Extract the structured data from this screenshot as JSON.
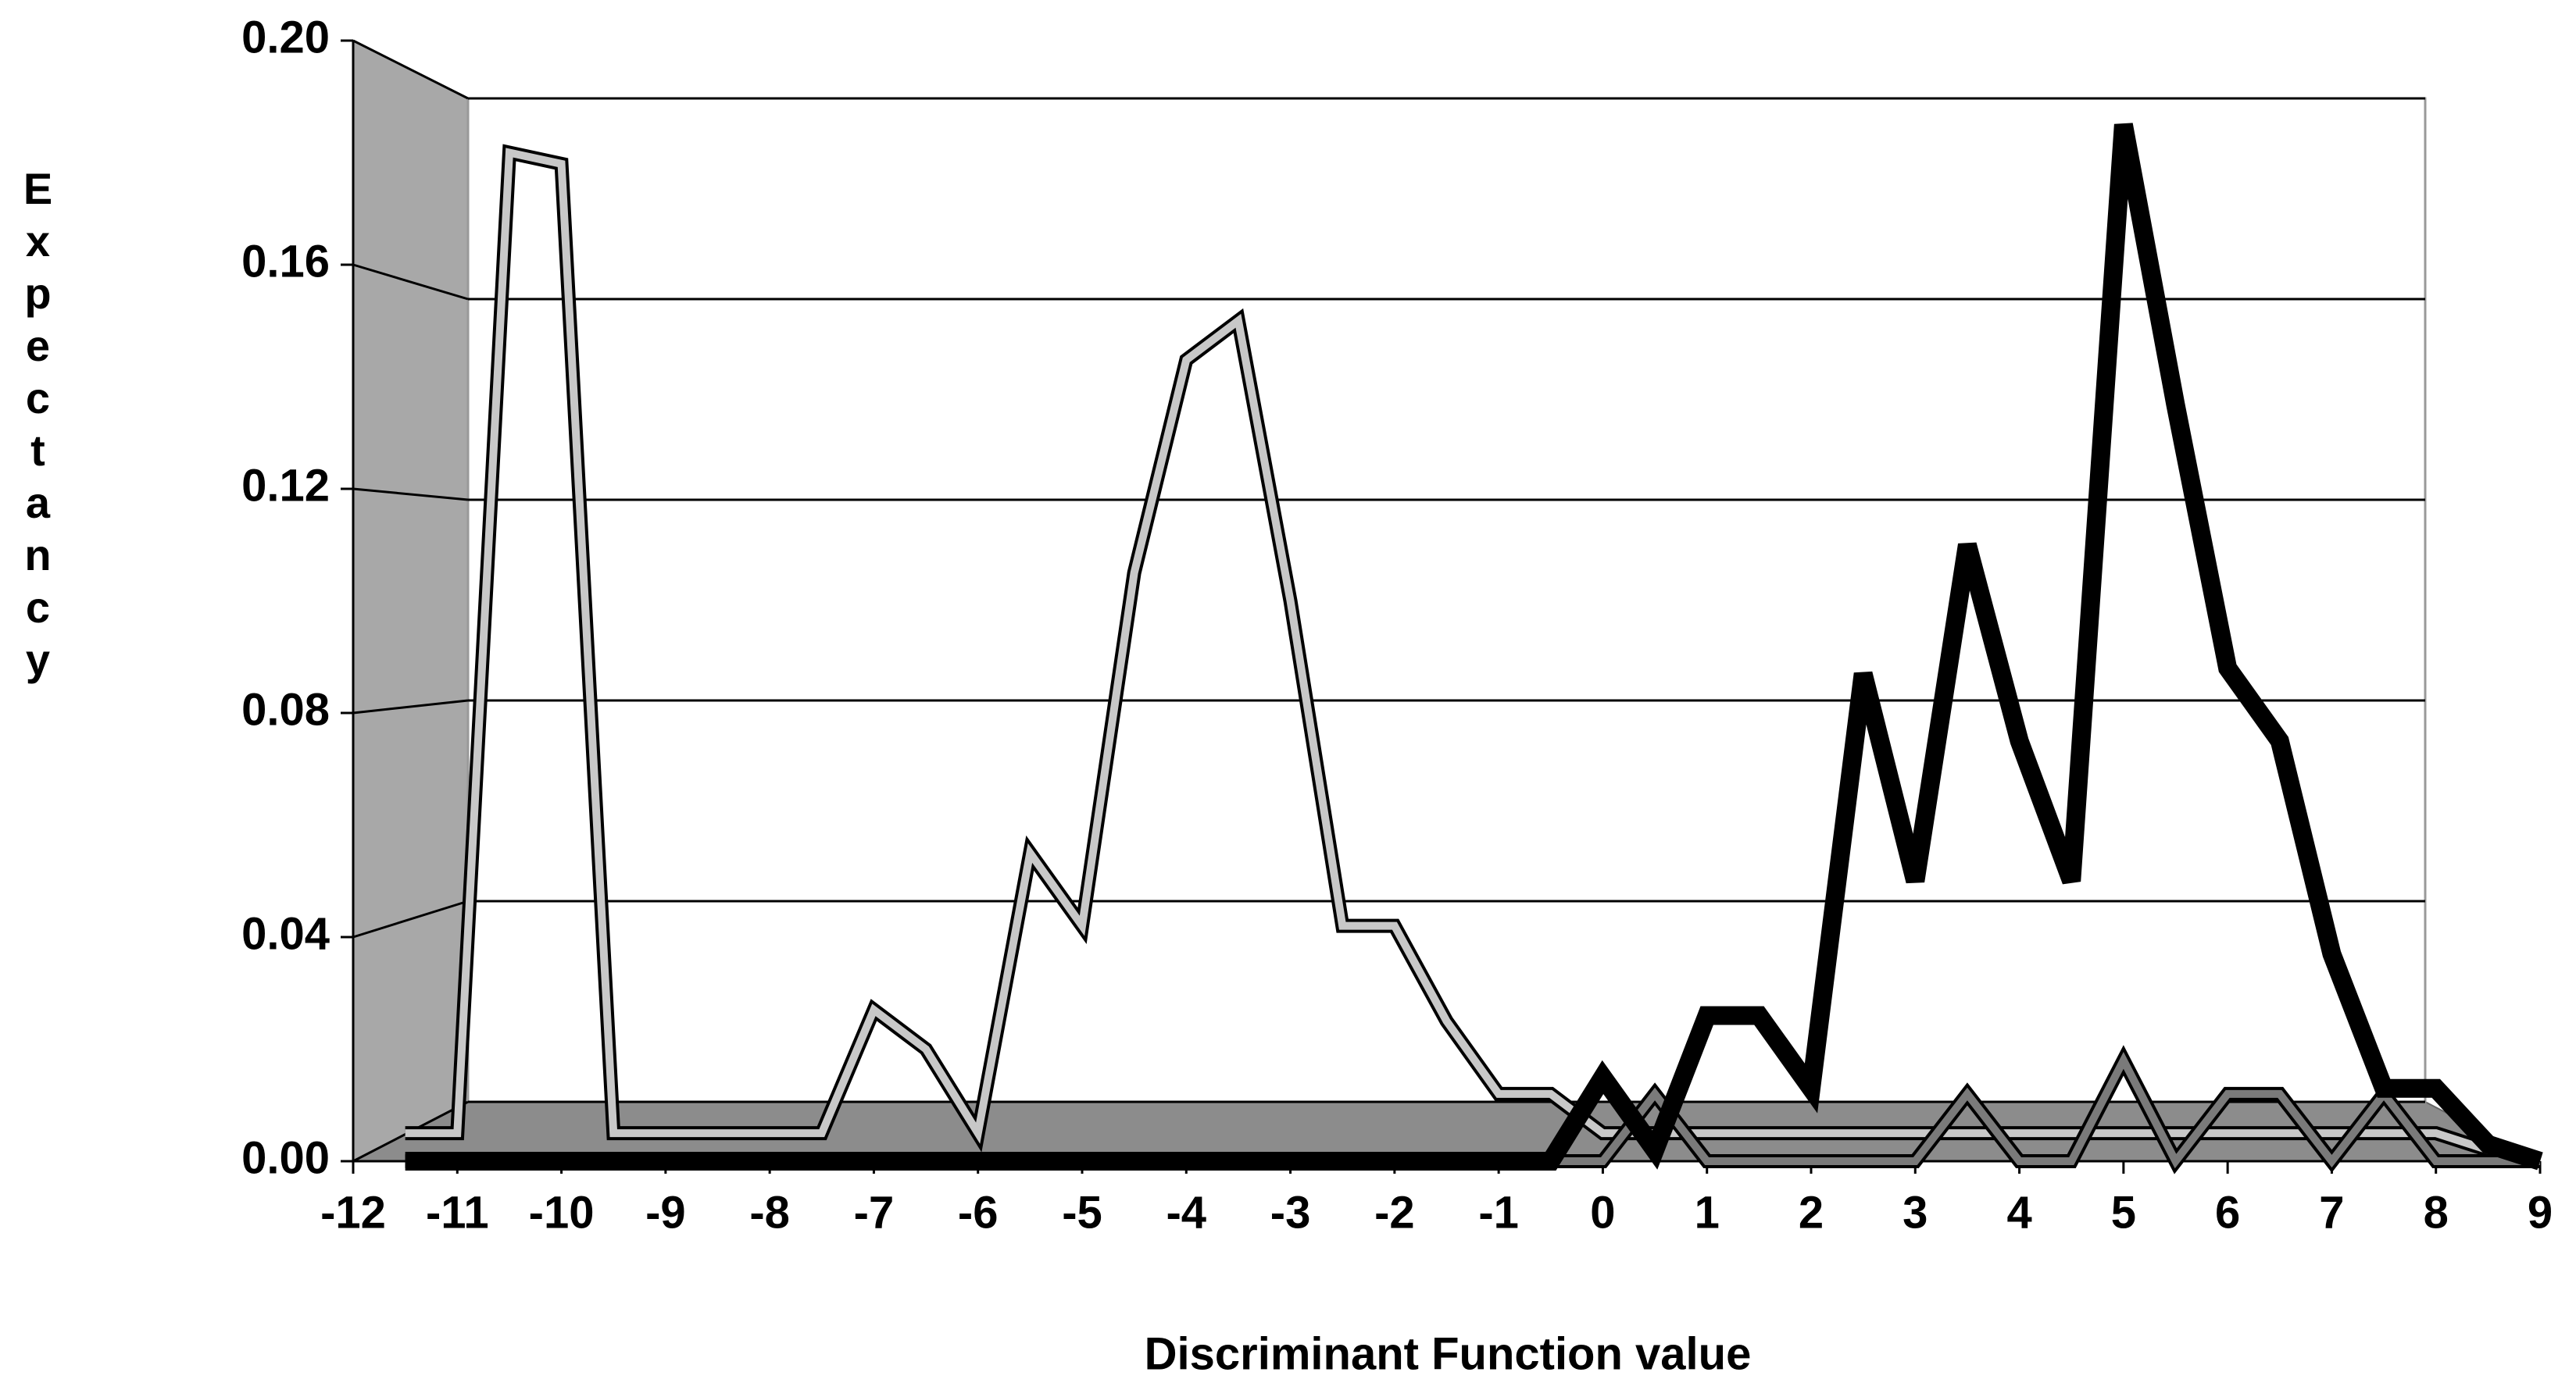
{
  "chart_data": {
    "type": "line3d",
    "x_label": "Discriminant Function value",
    "y_label": "Expectancy",
    "x": [
      -11.5,
      -11,
      -10.5,
      -10,
      -9.5,
      -9,
      -8.5,
      -8,
      -7.5,
      -7,
      -6.5,
      -6,
      -5.5,
      -5,
      -4.5,
      -4,
      -3.5,
      -3,
      -2.5,
      -2,
      -1.5,
      -1,
      -0.5,
      0,
      0.5,
      1,
      1.5,
      2,
      2.5,
      3,
      3.5,
      4,
      4.5,
      5,
      5.5,
      6,
      6.5,
      7,
      7.5,
      8,
      8.5,
      9
    ],
    "series": [
      {
        "color": "#c8c8c8",
        "values": [
          0.005,
          0.005,
          0.18,
          0.178,
          0.005,
          0.005,
          0.005,
          0.005,
          0.005,
          0.027,
          0.02,
          0.005,
          0.055,
          0.042,
          0.105,
          0.143,
          0.15,
          0.1,
          0.042,
          0.042,
          0.025,
          0.012,
          0.012,
          0.005,
          0.005,
          0.005,
          0.005,
          0.005,
          0.005,
          0.005,
          0.005,
          0.005,
          0.005,
          0.005,
          0.005,
          0.005,
          0.005,
          0.005,
          0.005,
          0.005,
          0.002,
          0
        ]
      },
      {
        "color": "#7a7a7a",
        "values": [
          0,
          0,
          0,
          0,
          0,
          0,
          0,
          0,
          0,
          0,
          0,
          0,
          0,
          0,
          0,
          0,
          0,
          0,
          0,
          0,
          0,
          0,
          0,
          0,
          0.012,
          0,
          0,
          0,
          0,
          0,
          0.012,
          0,
          0,
          0.018,
          0,
          0.012,
          0.012,
          0,
          0.012,
          0,
          0,
          0
        ]
      },
      {
        "color": "#000000",
        "values": [
          0,
          0,
          0,
          0,
          0,
          0,
          0,
          0,
          0,
          0,
          0,
          0,
          0,
          0,
          0,
          0,
          0,
          0,
          0,
          0,
          0,
          0,
          0,
          0.015,
          0.002,
          0.026,
          0.026,
          0.013,
          0.087,
          0.05,
          0.11,
          0.075,
          0.05,
          0.185,
          0.135,
          0.088,
          0.075,
          0.037,
          0.013,
          0.013,
          0.003,
          0
        ]
      }
    ],
    "xlim": [
      -12,
      9
    ],
    "xticks": [
      -12,
      -11,
      -10,
      -9,
      -8,
      -7,
      -6,
      -5,
      -4,
      -3,
      -2,
      -1,
      0,
      1,
      2,
      3,
      4,
      5,
      6,
      7,
      8,
      9
    ],
    "ylim": [
      0,
      0.2
    ],
    "yticks": [
      {
        "value": 0,
        "label": "0.00"
      },
      0.04,
      0.08,
      0.12,
      0.16,
      {
        "value": 0.2,
        "label": "0.20"
      }
    ],
    "grid": true
  }
}
